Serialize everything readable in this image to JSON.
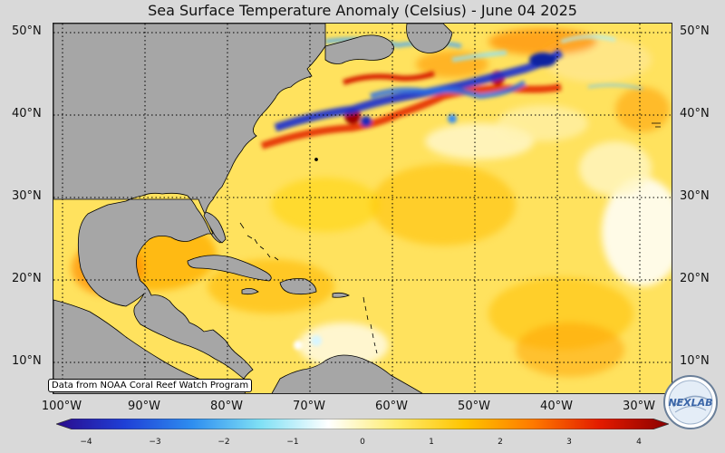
{
  "title": "Sea Surface Temperature Anomaly (Celsius) - June 04 2025",
  "source_note": "Data from NOAA Coral Reef Watch Program",
  "lat_labels": [
    "50°N",
    "40°N",
    "30°N",
    "20°N",
    "10°N"
  ],
  "lon_labels": [
    "100°W",
    "90°W",
    "80°W",
    "70°W",
    "60°W",
    "50°W",
    "40°W",
    "30°W"
  ],
  "colorbar": {
    "min": -4,
    "max": 4,
    "tick_labels": [
      "−4",
      "−3",
      "−2",
      "−1",
      "0",
      "1",
      "2",
      "3",
      "4"
    ],
    "colors": [
      "#2a0a8c",
      "#1f3fd6",
      "#2e8ef0",
      "#7fe0f5",
      "#ffffff",
      "#ffec6e",
      "#ffc400",
      "#ff7a00",
      "#e21a00",
      "#8a0000"
    ]
  },
  "logo_text": "NEXLAB",
  "colors": {
    "land": "#a6a6a6",
    "ocean_base": "#ffe36a",
    "warm": "#ffb400",
    "hot": "#e63200",
    "cold": "#1530c8",
    "neutral": "#ffffff"
  }
}
